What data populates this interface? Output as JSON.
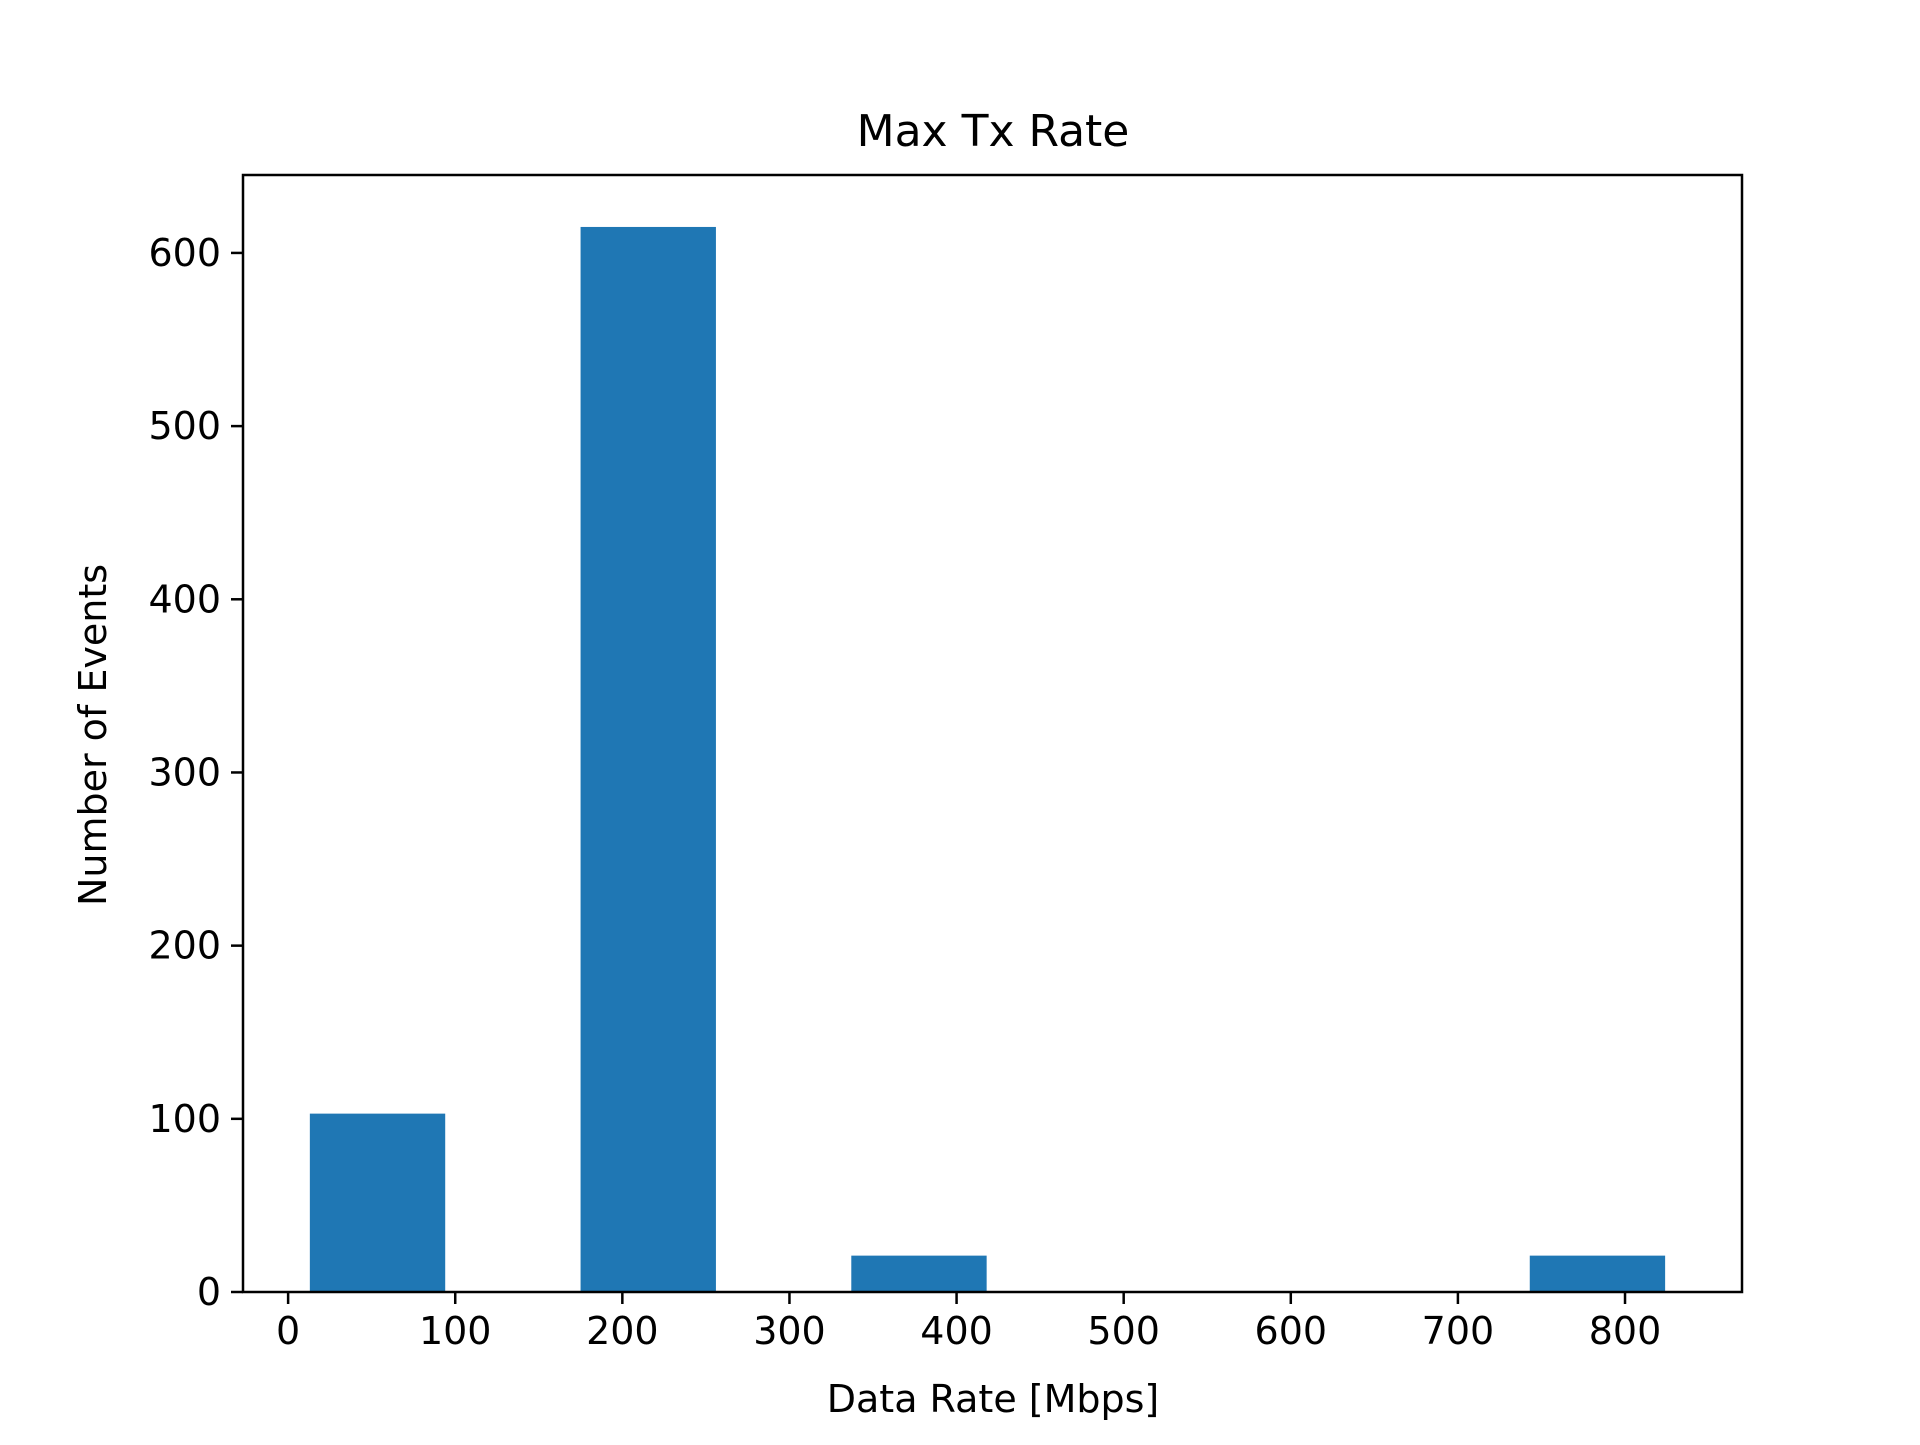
{
  "chart_data": {
    "type": "bar",
    "title": "Max Tx Rate",
    "xlabel": "Data Rate [Mbps]",
    "ylabel": "Number of Events",
    "xlim": [
      -27,
      870
    ],
    "ylim": [
      0,
      645
    ],
    "xticks": [
      0,
      100,
      200,
      300,
      400,
      500,
      600,
      700,
      800
    ],
    "yticks": [
      0,
      100,
      200,
      300,
      400,
      500,
      600
    ],
    "bars": [
      {
        "x0": 13,
        "x1": 94,
        "value": 103
      },
      {
        "x0": 175,
        "x1": 256,
        "value": 615
      },
      {
        "x0": 337,
        "x1": 418,
        "value": 21
      },
      {
        "x0": 743,
        "x1": 824,
        "value": 21
      }
    ],
    "bar_color": "#1f77b4",
    "grid": false,
    "legend": "none"
  }
}
